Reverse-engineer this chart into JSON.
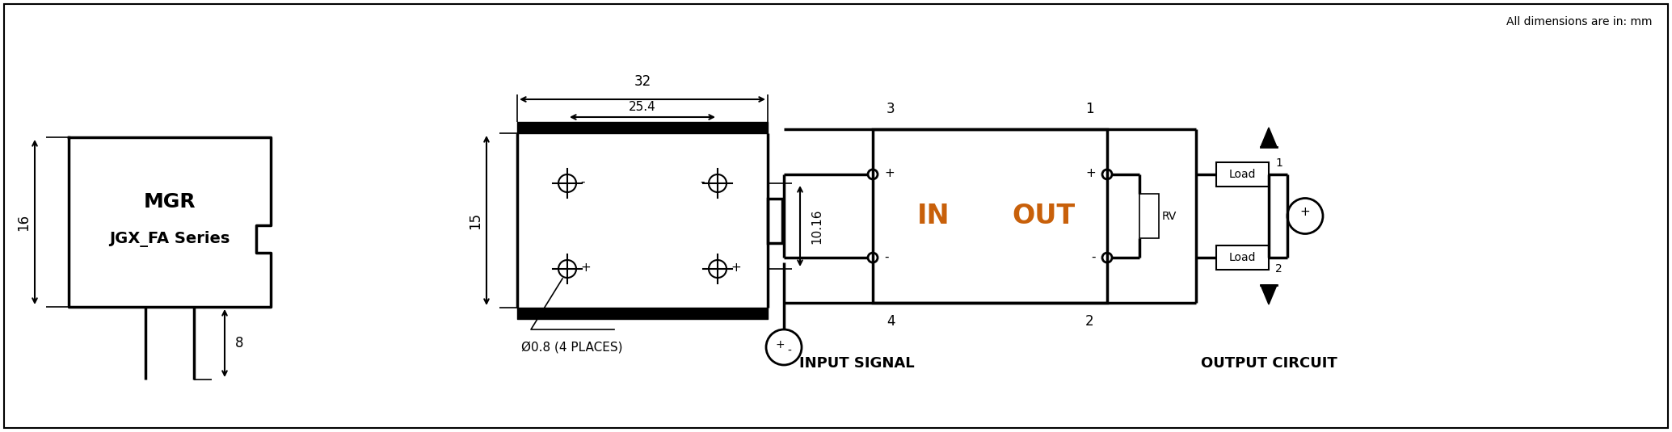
{
  "bg_color": "#ffffff",
  "line_color": "#000000",
  "text_color": "#000000",
  "orange_text": "#c8600a",
  "title_note": "All dimensions are in: mm",
  "mgr_label": "MGR",
  "series_label": "JGX_FA Series",
  "dim_16": "16",
  "dim_8": "8",
  "dim_32": "32",
  "dim_25_4": "25.4",
  "dim_15": "15",
  "dim_10_16": "10.16",
  "hole_note": "Ø0.8 (4 PLACES)",
  "input_label": "IN",
  "output_label": "OUT",
  "rv_label": "RV",
  "input_signal_label": "INPUT SIGNAL",
  "output_circuit_label": "OUTPUT CIRCUIT",
  "load_label": "Load",
  "plus": "+",
  "minus": "-",
  "lw_main": 2.0,
  "lw_thin": 1.2,
  "lw_thick": 2.5
}
